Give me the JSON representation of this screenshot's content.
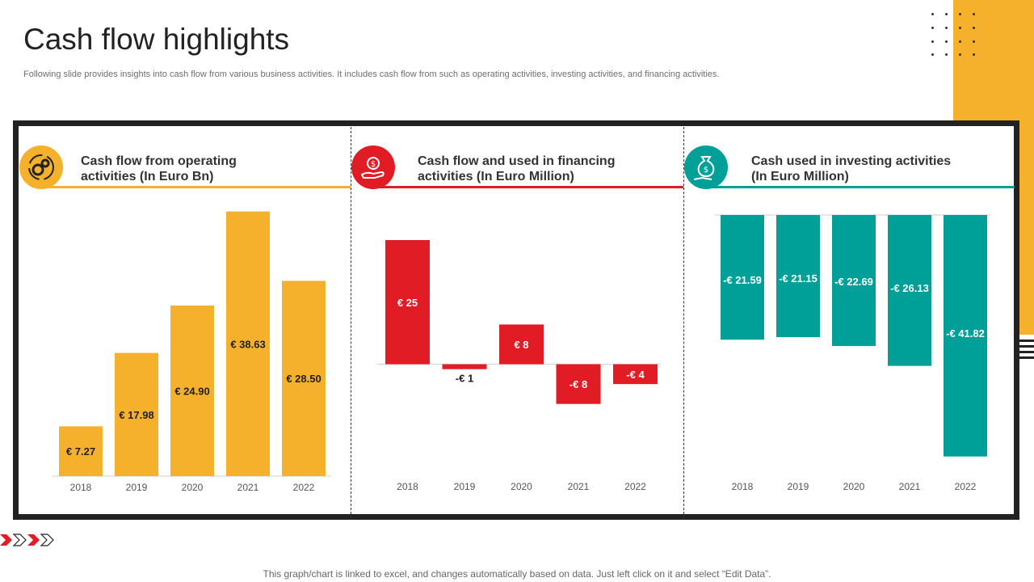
{
  "page": {
    "title": "Cash flow highlights",
    "subtitle": "Following slide provides insights into cash flow from various business activities. It includes cash flow from such as operating activities, investing activities, and financing activities.",
    "footer": "This graph/chart is linked to excel,  and changes automatically based on data. Just left click on it and select “Edit Data”."
  },
  "colors": {
    "operating": "#F6B12C",
    "financing": "#E21C24",
    "investing": "#00A099"
  },
  "chart_data": [
    {
      "type": "bar",
      "title": "Cash flow from operating activities (In Euro Bn)",
      "title_line1": "Cash flow from operating",
      "title_line2": "activities (In Euro Bn)",
      "icon": "gears-cycle-icon",
      "categories": [
        "2018",
        "2019",
        "2020",
        "2021",
        "2022"
      ],
      "values": [
        7.27,
        17.98,
        24.9,
        38.63,
        28.5
      ],
      "labels": [
        "€ 7.27",
        "€ 17.98",
        "€ 24.90",
        "€ 38.63",
        "€ 28.50"
      ],
      "ylim": [
        0,
        40
      ],
      "color": "#F6B12C"
    },
    {
      "type": "bar",
      "title": "Cash flow and used in financing activities (In Euro Million)",
      "title_line1": "Cash flow and used in financing",
      "title_line2": "activities (In Euro Million)",
      "icon": "money-hand-icon",
      "categories": [
        "2018",
        "2019",
        "2020",
        "2021",
        "2022"
      ],
      "values": [
        25,
        -1,
        8,
        -8,
        -4
      ],
      "labels": [
        "€ 25",
        "-€ 1",
        "€ 8",
        "-€ 8",
        "-€ 4"
      ],
      "ylim": [
        -10,
        25
      ],
      "color": "#E21C24"
    },
    {
      "type": "bar",
      "title": "Cash used in investing activities (In Euro Million)",
      "title_line1": "Cash used in investing activities",
      "title_line2": "(In Euro Million)",
      "icon": "money-bag-hand-icon",
      "categories": [
        "2018",
        "2019",
        "2020",
        "2021",
        "2022"
      ],
      "values": [
        -21.59,
        -21.15,
        -22.69,
        -26.13,
        -41.82
      ],
      "labels": [
        "-€ 21.59",
        "-€ 21.15",
        "-€ 22.69",
        "-€ 26.13",
        "-€ 41.82"
      ],
      "ylim": [
        -42,
        0
      ],
      "color": "#00A099"
    }
  ]
}
